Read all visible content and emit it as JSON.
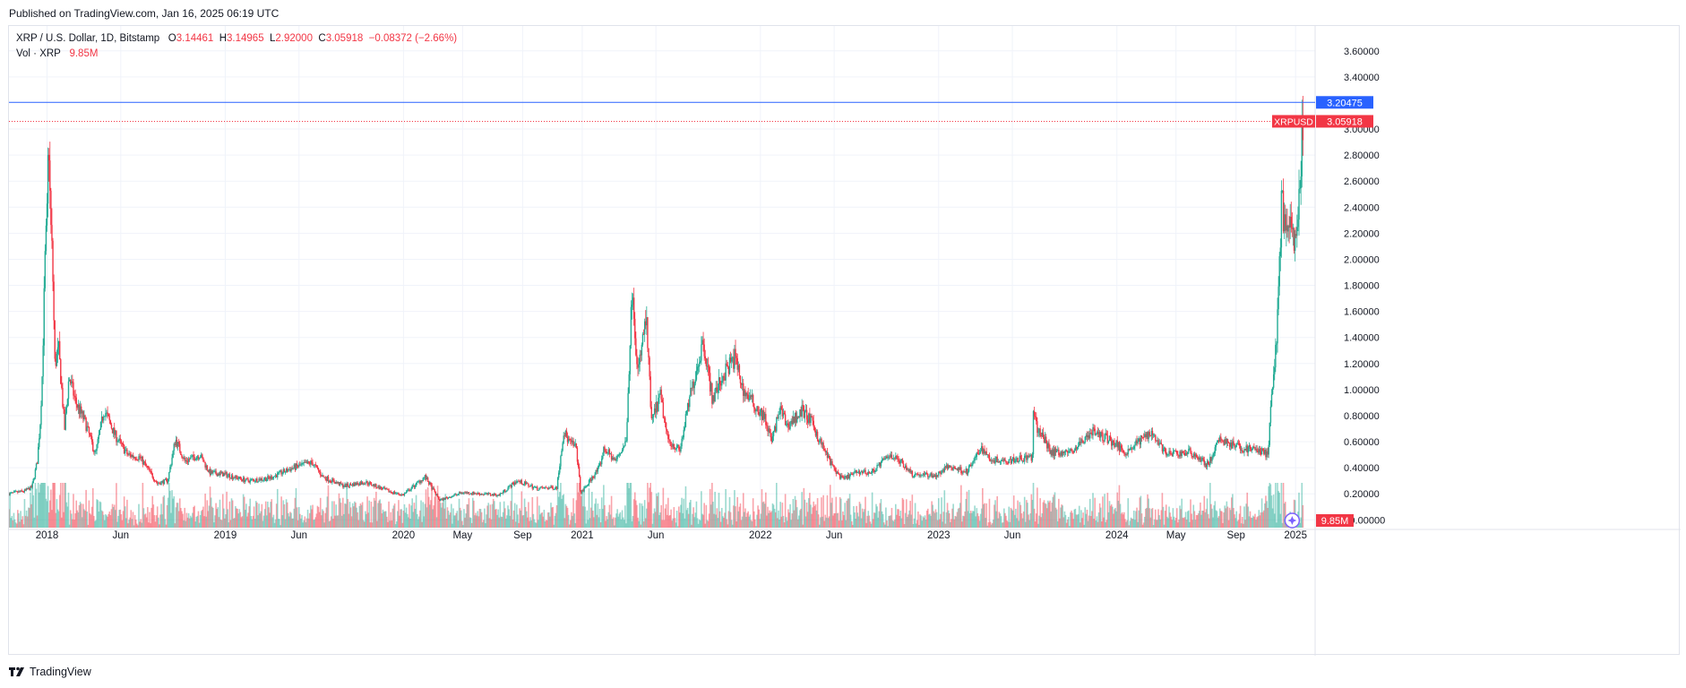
{
  "header": {
    "published": "Published on TradingView.com, Jan 16, 2025 06:19 UTC"
  },
  "legend": {
    "symbol": "XRP / U.S. Dollar, 1D, Bitstamp",
    "o_label": "O",
    "o_value": "3.14461",
    "h_label": "H",
    "h_value": "3.14965",
    "l_label": "L",
    "l_value": "2.92000",
    "c_label": "C",
    "c_value": "3.05918",
    "change": "−0.08372 (−2.66%)",
    "vol_label": "Vol · XRP",
    "vol_value": "9.85M"
  },
  "footer": {
    "brand": "TradingView"
  },
  "colors": {
    "up": "#22ab94",
    "down": "#f23645",
    "grid": "#f0f3fa",
    "hline": "#2962ff",
    "price_line": "#f23645",
    "axis_text": "#131722"
  },
  "chart_data": {
    "type": "candlestick",
    "y_ticks": [
      "3.60000",
      "3.40000",
      "3.00000",
      "2.80000",
      "2.60000",
      "2.40000",
      "2.20000",
      "2.00000",
      "1.80000",
      "1.60000",
      "1.40000",
      "1.20000",
      "1.00000",
      "0.80000",
      "0.60000",
      "0.40000",
      "0.20000",
      "−0.00000"
    ],
    "y_tick_values": [
      3.6,
      3.4,
      3.0,
      2.8,
      2.6,
      2.4,
      2.2,
      2.0,
      1.8,
      1.6,
      1.4,
      1.2,
      1.0,
      0.8,
      0.6,
      0.4,
      0.2,
      0.0
    ],
    "ylim": [
      -0.06,
      3.75
    ],
    "x_labels": [
      {
        "label": "2018",
        "date": "2018-01-01"
      },
      {
        "label": "Jun",
        "date": "2018-06-01"
      },
      {
        "label": "2019",
        "date": "2019-01-01"
      },
      {
        "label": "Jun",
        "date": "2019-06-01"
      },
      {
        "label": "2020",
        "date": "2020-01-01"
      },
      {
        "label": "May",
        "date": "2020-05-01"
      },
      {
        "label": "Sep",
        "date": "2020-09-01"
      },
      {
        "label": "2021",
        "date": "2021-01-01"
      },
      {
        "label": "Jun",
        "date": "2021-06-01"
      },
      {
        "label": "2022",
        "date": "2022-01-01"
      },
      {
        "label": "Jun",
        "date": "2022-06-01"
      },
      {
        "label": "2023",
        "date": "2023-01-01"
      },
      {
        "label": "Jun",
        "date": "2023-06-01"
      },
      {
        "label": "2024",
        "date": "2024-01-01"
      },
      {
        "label": "May",
        "date": "2024-05-01"
      },
      {
        "label": "Sep",
        "date": "2024-09-01"
      },
      {
        "label": "2025",
        "date": "2025-01-01"
      }
    ],
    "x_range": [
      "2017-10-15",
      "2025-02-10"
    ],
    "series": [
      {
        "name": "XRP / U.S. Dollar",
        "points": [
          [
            "2017-10-15",
            0.2
          ],
          [
            "2017-11-15",
            0.22
          ],
          [
            "2017-12-01",
            0.25
          ],
          [
            "2017-12-12",
            0.45
          ],
          [
            "2017-12-18",
            0.75
          ],
          [
            "2017-12-22",
            1.1
          ],
          [
            "2017-12-28",
            2.0
          ],
          [
            "2018-01-02",
            2.4
          ],
          [
            "2018-01-04",
            3.05
          ],
          [
            "2018-01-08",
            2.3
          ],
          [
            "2018-01-12",
            2.0
          ],
          [
            "2018-01-17",
            1.2
          ],
          [
            "2018-01-25",
            1.3
          ],
          [
            "2018-02-06",
            0.7
          ],
          [
            "2018-02-15",
            1.1
          ],
          [
            "2018-03-01",
            0.9
          ],
          [
            "2018-03-20",
            0.75
          ],
          [
            "2018-04-10",
            0.5
          ],
          [
            "2018-04-28",
            0.85
          ],
          [
            "2018-05-20",
            0.65
          ],
          [
            "2018-06-15",
            0.5
          ],
          [
            "2018-07-10",
            0.48
          ],
          [
            "2018-08-15",
            0.28
          ],
          [
            "2018-09-05",
            0.3
          ],
          [
            "2018-09-21",
            0.62
          ],
          [
            "2018-10-10",
            0.45
          ],
          [
            "2018-11-10",
            0.5
          ],
          [
            "2018-11-30",
            0.36
          ],
          [
            "2018-12-31",
            0.35
          ],
          [
            "2019-02-15",
            0.3
          ],
          [
            "2019-04-01",
            0.32
          ],
          [
            "2019-05-20",
            0.4
          ],
          [
            "2019-06-28",
            0.44
          ],
          [
            "2019-07-20",
            0.33
          ],
          [
            "2019-09-01",
            0.26
          ],
          [
            "2019-10-15",
            0.29
          ],
          [
            "2019-12-01",
            0.22
          ],
          [
            "2019-12-31",
            0.19
          ],
          [
            "2020-02-14",
            0.33
          ],
          [
            "2020-03-15",
            0.15
          ],
          [
            "2020-05-01",
            0.21
          ],
          [
            "2020-07-15",
            0.19
          ],
          [
            "2020-08-20",
            0.3
          ],
          [
            "2020-10-01",
            0.24
          ],
          [
            "2020-11-10",
            0.25
          ],
          [
            "2020-11-24",
            0.68
          ],
          [
            "2020-12-05",
            0.6
          ],
          [
            "2020-12-20",
            0.55
          ],
          [
            "2020-12-29",
            0.2
          ],
          [
            "2021-01-15",
            0.29
          ],
          [
            "2021-02-05",
            0.4
          ],
          [
            "2021-02-15",
            0.55
          ],
          [
            "2021-03-10",
            0.45
          ],
          [
            "2021-04-01",
            0.6
          ],
          [
            "2021-04-14",
            1.85
          ],
          [
            "2021-04-24",
            1.1
          ],
          [
            "2021-05-12",
            1.55
          ],
          [
            "2021-05-23",
            0.75
          ],
          [
            "2021-06-10",
            0.95
          ],
          [
            "2021-06-25",
            0.62
          ],
          [
            "2021-07-20",
            0.53
          ],
          [
            "2021-08-10",
            0.95
          ],
          [
            "2021-09-06",
            1.38
          ],
          [
            "2021-09-25",
            0.92
          ],
          [
            "2021-10-15",
            1.1
          ],
          [
            "2021-11-10",
            1.25
          ],
          [
            "2021-11-26",
            1.0
          ],
          [
            "2021-12-20",
            0.88
          ],
          [
            "2022-01-10",
            0.78
          ],
          [
            "2022-01-24",
            0.6
          ],
          [
            "2022-02-10",
            0.85
          ],
          [
            "2022-02-25",
            0.72
          ],
          [
            "2022-03-28",
            0.84
          ],
          [
            "2022-04-15",
            0.75
          ],
          [
            "2022-05-10",
            0.55
          ],
          [
            "2022-05-30",
            0.4
          ],
          [
            "2022-06-18",
            0.31
          ],
          [
            "2022-07-20",
            0.37
          ],
          [
            "2022-08-15",
            0.36
          ],
          [
            "2022-09-23",
            0.5
          ],
          [
            "2022-10-15",
            0.45
          ],
          [
            "2022-11-09",
            0.35
          ],
          [
            "2022-12-28",
            0.34
          ],
          [
            "2023-01-20",
            0.41
          ],
          [
            "2023-03-01",
            0.37
          ],
          [
            "2023-03-29",
            0.55
          ],
          [
            "2023-04-20",
            0.46
          ],
          [
            "2023-05-20",
            0.46
          ],
          [
            "2023-07-12",
            0.48
          ],
          [
            "2023-07-14",
            0.82
          ],
          [
            "2023-07-20",
            0.72
          ],
          [
            "2023-08-20",
            0.52
          ],
          [
            "2023-10-01",
            0.52
          ],
          [
            "2023-11-10",
            0.68
          ],
          [
            "2023-12-15",
            0.62
          ],
          [
            "2024-01-20",
            0.52
          ],
          [
            "2024-03-11",
            0.68
          ],
          [
            "2024-04-13",
            0.5
          ],
          [
            "2024-06-01",
            0.52
          ],
          [
            "2024-07-05",
            0.42
          ],
          [
            "2024-07-31",
            0.62
          ],
          [
            "2024-09-10",
            0.55
          ],
          [
            "2024-10-15",
            0.54
          ],
          [
            "2024-11-05",
            0.5
          ],
          [
            "2024-11-16",
            1.1
          ],
          [
            "2024-11-24",
            1.45
          ],
          [
            "2024-12-01",
            2.2
          ],
          [
            "2024-12-03",
            2.6
          ],
          [
            "2024-12-10",
            2.15
          ],
          [
            "2024-12-20",
            2.25
          ],
          [
            "2024-12-31",
            2.08
          ],
          [
            "2025-01-06",
            2.4
          ],
          [
            "2025-01-12",
            2.55
          ],
          [
            "2025-01-15",
            3.14
          ],
          [
            "2025-01-16",
            3.06
          ]
        ]
      },
      {
        "name": "Vol · XRP",
        "type": "volume",
        "note": "relative daily volume"
      }
    ],
    "horizontal_line": {
      "value": 3.20475,
      "label": "3.20475"
    },
    "last_price": {
      "value": 3.05918,
      "label": "3.05918",
      "symbol": "XRPUSD"
    },
    "volume_last": "9.85M"
  }
}
